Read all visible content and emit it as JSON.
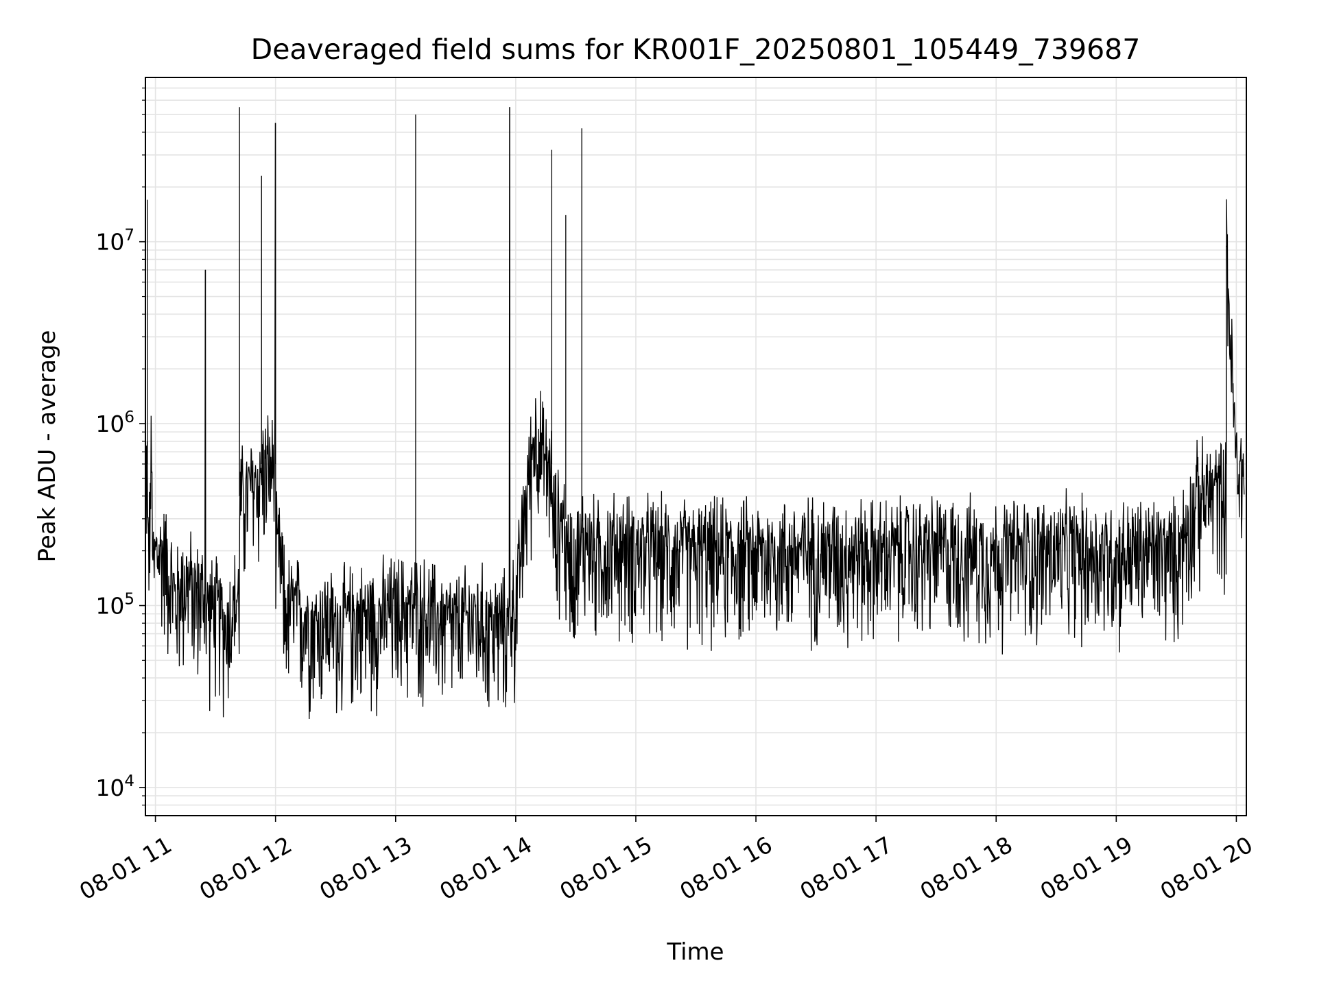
{
  "chart_data": {
    "type": "line",
    "title": "Deaveraged field sums for KR001F_20250801_105449_739687",
    "xlabel": "Time",
    "ylabel": "Peak ADU - average",
    "yscale": "log",
    "xlim": [
      "2025-08-01 10:55",
      "2025-08-01 20:05"
    ],
    "ylim": [
      7000,
      80000000
    ],
    "grid": true,
    "x_ticks": [
      {
        "value": "2025-08-01 11:00",
        "label": "08-01 11"
      },
      {
        "value": "2025-08-01 12:00",
        "label": "08-01 12"
      },
      {
        "value": "2025-08-01 13:00",
        "label": "08-01 13"
      },
      {
        "value": "2025-08-01 14:00",
        "label": "08-01 14"
      },
      {
        "value": "2025-08-01 15:00",
        "label": "08-01 15"
      },
      {
        "value": "2025-08-01 16:00",
        "label": "08-01 16"
      },
      {
        "value": "2025-08-01 17:00",
        "label": "08-01 17"
      },
      {
        "value": "2025-08-01 18:00",
        "label": "08-01 18"
      },
      {
        "value": "2025-08-01 19:00",
        "label": "08-01 19"
      },
      {
        "value": "2025-08-01 20:00",
        "label": "08-01 20"
      }
    ],
    "y_ticks": [
      {
        "value": 10000,
        "base": "10",
        "exp": "4"
      },
      {
        "value": 100000,
        "base": "10",
        "exp": "5"
      },
      {
        "value": 1000000,
        "base": "10",
        "exp": "6"
      },
      {
        "value": 10000000,
        "base": "10",
        "exp": "7"
      }
    ],
    "series": [
      {
        "color": "#000000",
        "x": [
          "2025-08-01 10:55",
          "2025-08-01 10:56",
          "2025-08-01 10:57",
          "2025-08-01 10:58",
          "2025-08-01 10:59",
          "2025-08-01 11:00",
          "2025-08-01 11:02",
          "2025-08-01 11:05",
          "2025-08-01 11:10",
          "2025-08-01 11:15",
          "2025-08-01 11:20",
          "2025-08-01 11:25",
          "2025-08-01 11:30",
          "2025-08-01 11:35",
          "2025-08-01 11:40",
          "2025-08-01 11:42",
          "2025-08-01 11:45",
          "2025-08-01 11:50",
          "2025-08-01 11:53",
          "2025-08-01 11:55",
          "2025-08-01 12:00",
          "2025-08-01 12:02",
          "2025-08-01 12:05",
          "2025-08-01 12:10",
          "2025-08-01 12:15",
          "2025-08-01 12:20",
          "2025-08-01 12:25",
          "2025-08-01 12:30",
          "2025-08-01 12:40",
          "2025-08-01 12:50",
          "2025-08-01 13:00",
          "2025-08-01 13:10",
          "2025-08-01 13:11",
          "2025-08-01 13:20",
          "2025-08-01 13:30",
          "2025-08-01 13:40",
          "2025-08-01 13:50",
          "2025-08-01 13:57",
          "2025-08-01 14:00",
          "2025-08-01 14:05",
          "2025-08-01 14:10",
          "2025-08-01 14:15",
          "2025-08-01 14:18",
          "2025-08-01 14:20",
          "2025-08-01 14:25",
          "2025-08-01 14:30",
          "2025-08-01 14:33",
          "2025-08-01 14:35",
          "2025-08-01 14:40",
          "2025-08-01 14:50",
          "2025-08-01 15:00",
          "2025-08-01 15:30",
          "2025-08-01 16:00",
          "2025-08-01 16:30",
          "2025-08-01 17:00",
          "2025-08-01 17:30",
          "2025-08-01 18:00",
          "2025-08-01 18:30",
          "2025-08-01 19:00",
          "2025-08-01 19:20",
          "2025-08-01 19:30",
          "2025-08-01 19:40",
          "2025-08-01 19:50",
          "2025-08-01 19:55",
          "2025-08-01 20:00",
          "2025-08-01 20:04"
        ],
        "y": [
          600000,
          17000000,
          250000,
          700000,
          150000,
          200000,
          200000,
          200000,
          110000,
          150000,
          120000,
          7000000,
          100000,
          80000,
          110000,
          55000000,
          400000,
          500000,
          23000000,
          600000,
          45000000,
          200000,
          100000,
          100000,
          90000,
          80000,
          90000,
          80000,
          90000,
          90000,
          100000,
          50000000,
          100000,
          90000,
          80000,
          90000,
          80000,
          55000000,
          100000,
          400000,
          1000000,
          600000,
          32000000,
          300000,
          14000000,
          200000,
          42000000,
          250000,
          200000,
          220000,
          210000,
          200000,
          200000,
          210000,
          200000,
          210000,
          200000,
          210000,
          200000,
          210000,
          200000,
          400000,
          450000,
          9500000,
          600000,
          550000
        ],
        "noise": {
          "low": 0.35,
          "high": 2.2
        }
      }
    ]
  }
}
